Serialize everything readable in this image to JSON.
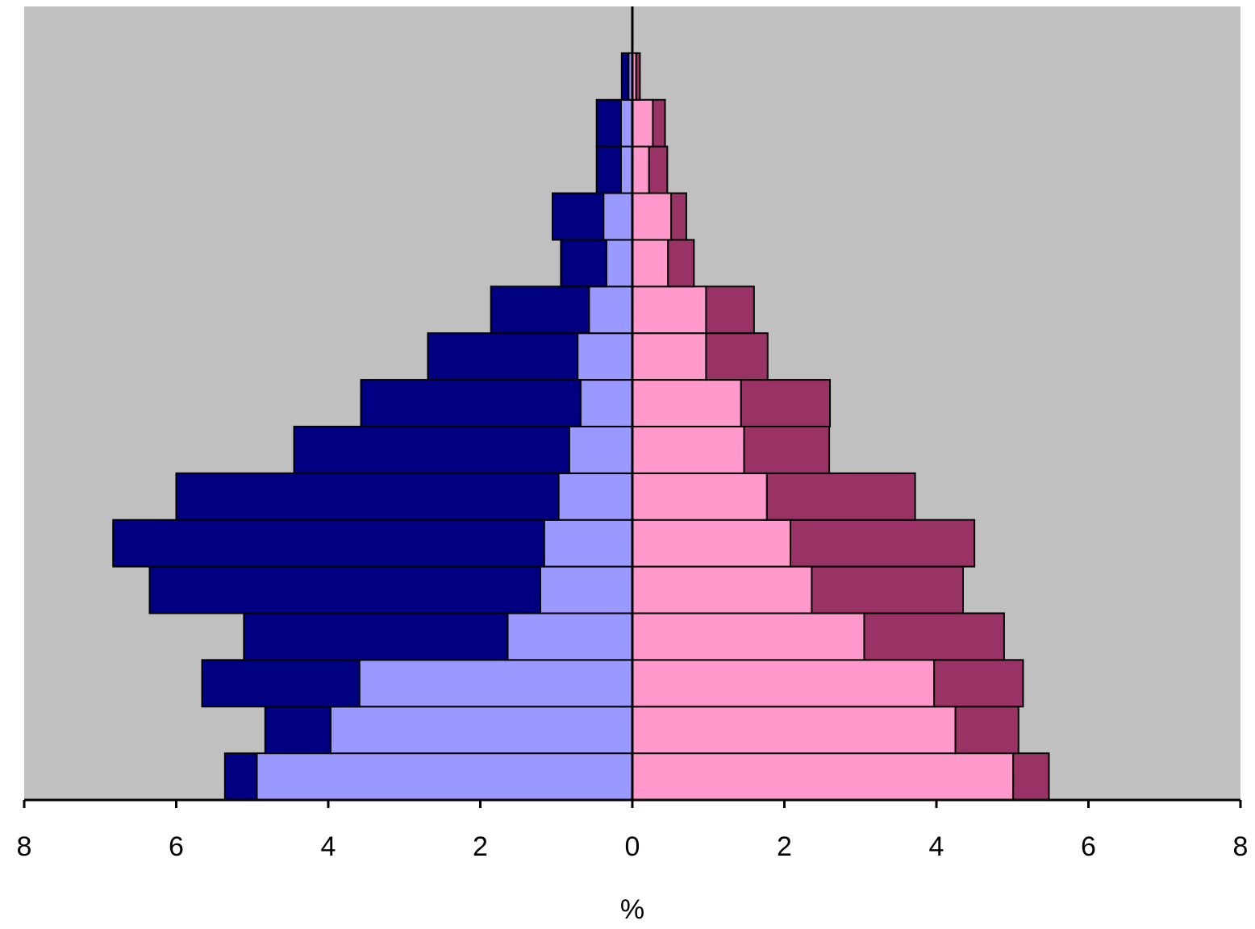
{
  "chart_data": {
    "type": "bar",
    "orientation": "horizontal",
    "stacked": true,
    "x_label": "%",
    "categories": [
      null,
      null,
      null,
      null,
      null,
      null,
      null,
      null,
      null,
      null,
      null,
      null,
      null,
      null,
      null,
      null,
      null
    ],
    "series": [
      {
        "color": "#9999ff",
        "values": [
          -4.94,
          -3.97,
          -3.59,
          -1.64,
          -1.21,
          -1.16,
          -0.97,
          -0.83,
          -0.68,
          -0.72,
          -0.57,
          -0.34,
          -0.38,
          -0.15,
          -0.15,
          -0.05,
          null
        ]
      },
      {
        "color": "#000080",
        "values": [
          -0.42,
          -0.86,
          -2.07,
          -3.47,
          -5.14,
          -5.67,
          -5.03,
          -3.62,
          -2.89,
          -1.97,
          -1.29,
          -0.6,
          -0.67,
          -0.32,
          -0.32,
          -0.09,
          null
        ]
      },
      {
        "color": "#ff99cc",
        "values": [
          5.01,
          4.25,
          3.97,
          3.05,
          2.36,
          2.08,
          1.77,
          1.47,
          1.43,
          0.97,
          0.97,
          0.47,
          0.51,
          0.22,
          0.27,
          0.05,
          null
        ]
      },
      {
        "color": "#993366",
        "values": [
          0.47,
          0.83,
          1.17,
          1.84,
          1.99,
          2.42,
          1.95,
          1.12,
          1.17,
          0.81,
          0.63,
          0.34,
          0.2,
          0.24,
          0.16,
          0.05,
          null
        ]
      }
    ],
    "xlim": [
      -8,
      8
    ],
    "xticks": [
      {
        "value": -8,
        "label": "8"
      },
      {
        "value": -6,
        "label": "6"
      },
      {
        "value": -4,
        "label": "4"
      },
      {
        "value": -2,
        "label": "2"
      },
      0,
      2,
      4,
      6,
      8
    ],
    "background": "#c0c0c0"
  }
}
